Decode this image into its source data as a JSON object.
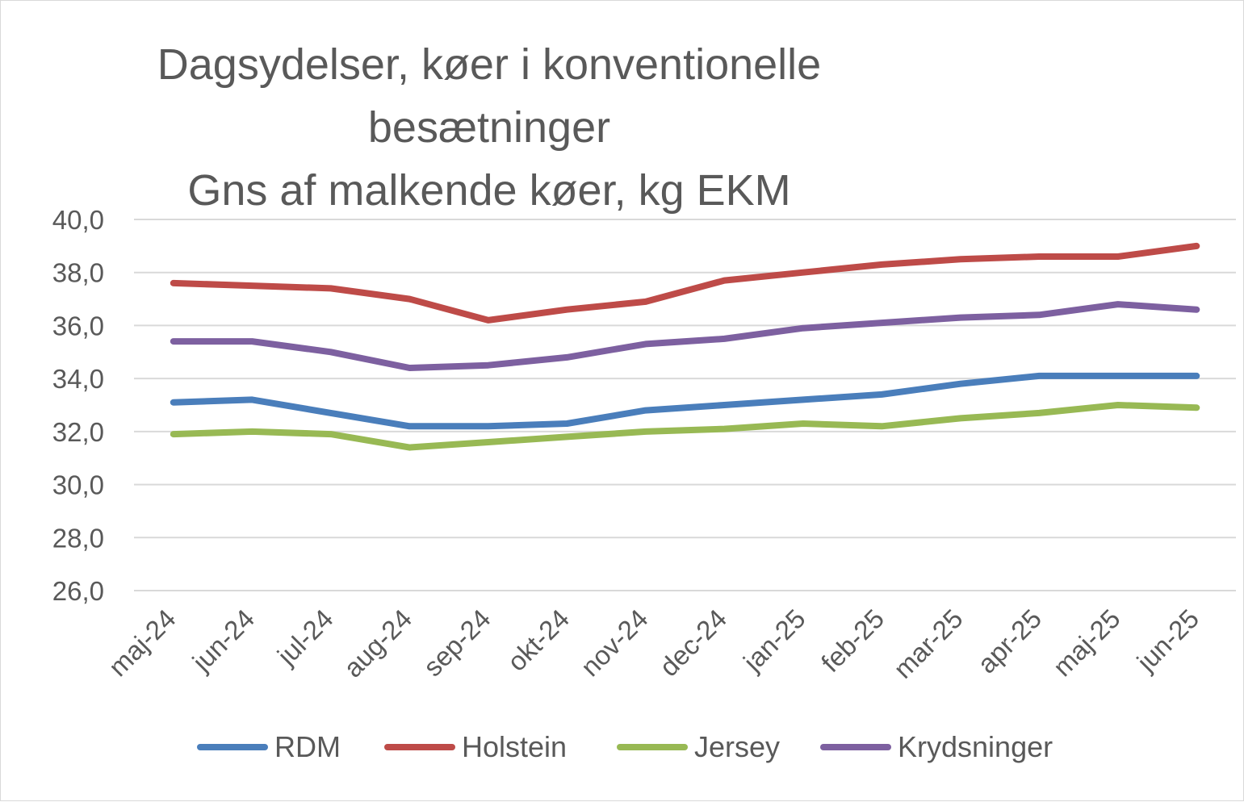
{
  "chart_data": {
    "type": "line",
    "title": [
      "Dagsydelser, køer i konventionelle",
      "besætninger",
      "Gns af malkende køer, kg EKM"
    ],
    "categories": [
      "maj-24",
      "jun-24",
      "jul-24",
      "aug-24",
      "sep-24",
      "okt-24",
      "nov-24",
      "dec-24",
      "jan-25",
      "feb-25",
      "mar-25",
      "apr-25",
      "maj-25",
      "jun-25"
    ],
    "ylim": [
      26,
      40
    ],
    "yticks": [
      "26,0",
      "28,0",
      "30,0",
      "32,0",
      "34,0",
      "36,0",
      "38,0",
      "40,0"
    ],
    "grid": true,
    "legend_position": "bottom",
    "series": [
      {
        "name": "RDM",
        "color": "#4a7ebb",
        "values": [
          33.1,
          33.2,
          32.7,
          32.2,
          32.2,
          32.3,
          32.8,
          33.0,
          33.2,
          33.4,
          33.8,
          34.1,
          34.1,
          34.1
        ]
      },
      {
        "name": "Holstein",
        "color": "#be4b48",
        "values": [
          37.6,
          37.5,
          37.4,
          37.0,
          36.2,
          36.6,
          36.9,
          37.7,
          38.0,
          38.3,
          38.5,
          38.6,
          38.6,
          39.0
        ]
      },
      {
        "name": "Jersey",
        "color": "#98b954",
        "values": [
          31.9,
          32.0,
          31.9,
          31.4,
          31.6,
          31.8,
          32.0,
          32.1,
          32.3,
          32.2,
          32.5,
          32.7,
          33.0,
          32.9
        ]
      },
      {
        "name": "Krydsninger",
        "color": "#7d60a0",
        "values": [
          35.4,
          35.4,
          35.0,
          34.4,
          34.5,
          34.8,
          35.3,
          35.5,
          35.9,
          36.1,
          36.3,
          36.4,
          36.8,
          36.6
        ]
      }
    ]
  }
}
